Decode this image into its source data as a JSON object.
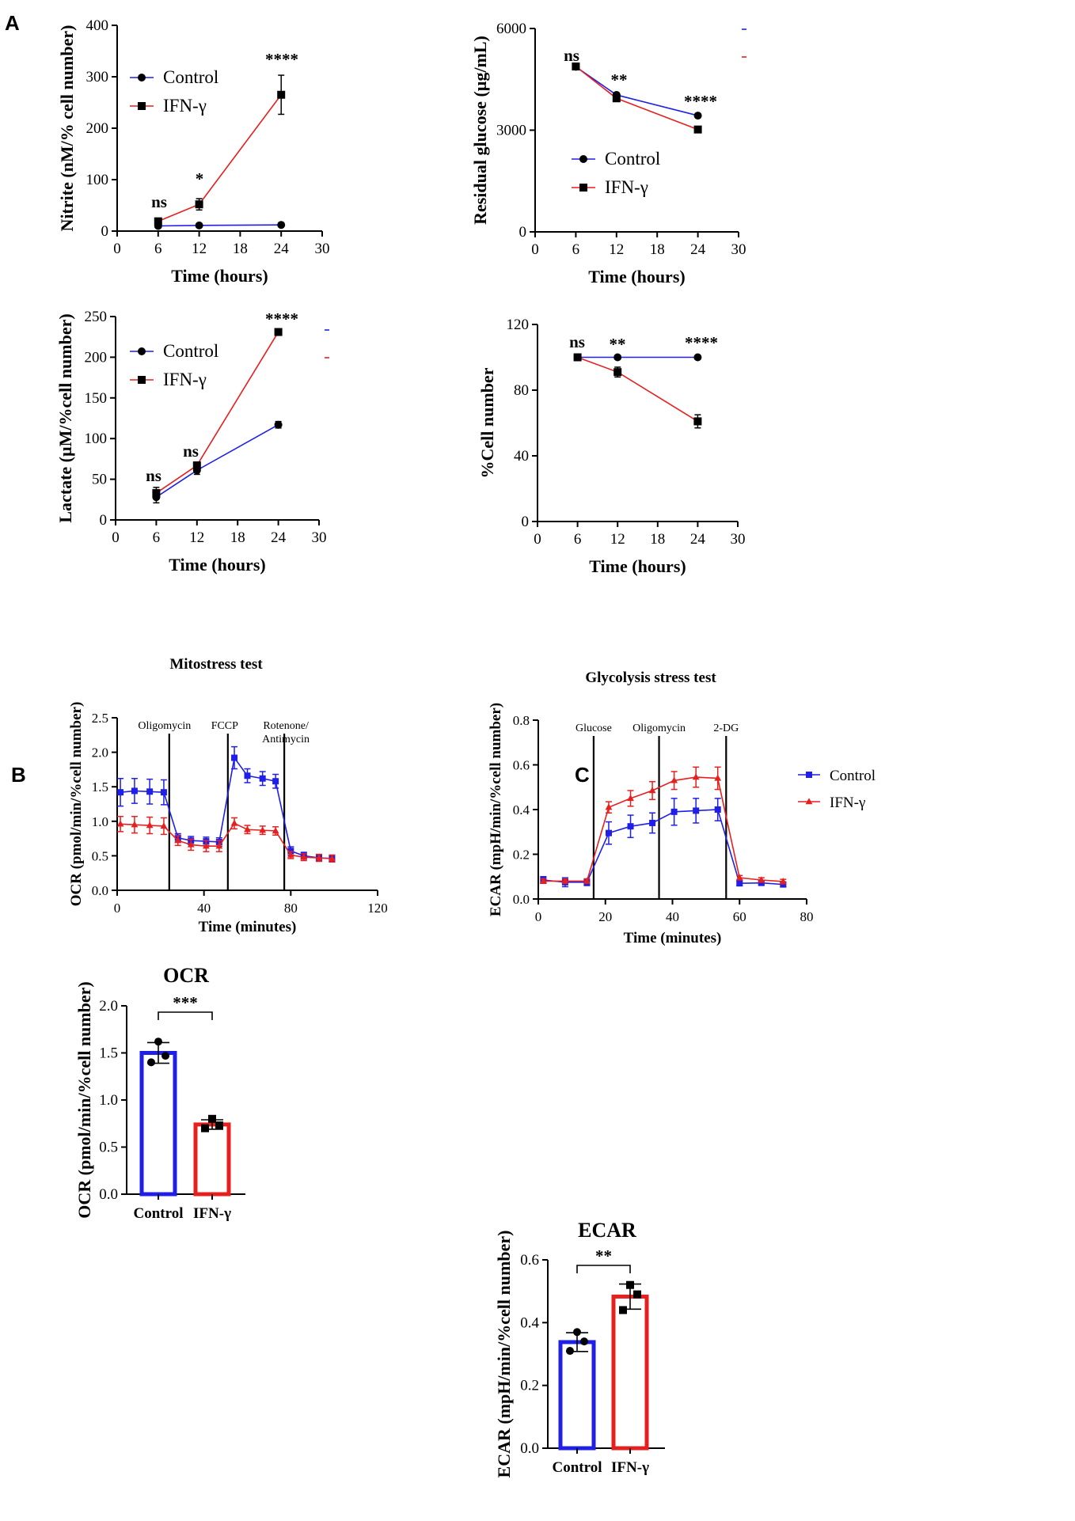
{
  "panel_labels": {
    "a": "A",
    "b": "B",
    "c": "C"
  },
  "colors": {
    "control": "#1f1fe6",
    "ifn": "#e61f1f",
    "axis": "#000000"
  },
  "chart_data": [
    {
      "id": "nitrite",
      "type": "line",
      "xlabel": "Time (hours)",
      "ylabel": "Nitrite (nM/% cell number)",
      "xlim": [
        0,
        30
      ],
      "ylim": [
        0,
        400
      ],
      "xticks": [
        "0",
        "6",
        "12",
        "18",
        "24",
        "30"
      ],
      "yticks": [
        "0",
        "100",
        "200",
        "300",
        "400"
      ],
      "x": [
        6,
        12,
        24
      ],
      "series": [
        {
          "name": "Control",
          "marker": "circle",
          "values": [
            10,
            11,
            12
          ],
          "err": [
            2,
            2,
            2
          ]
        },
        {
          "name": "IFN-γ",
          "marker": "square",
          "values": [
            19,
            52,
            265
          ],
          "err": [
            4,
            11,
            38
          ]
        }
      ],
      "significance": [
        "ns",
        "*",
        "****"
      ],
      "legend_position": "top-left"
    },
    {
      "id": "glucose",
      "type": "line",
      "xlabel": "Time (hours)",
      "ylabel": "Residual glucose (µg/mL)",
      "xlim": [
        0,
        30
      ],
      "ylim": [
        0,
        6000
      ],
      "xticks": [
        "0",
        "6",
        "12",
        "18",
        "24",
        "30"
      ],
      "yticks": [
        "0",
        "3000",
        "6000"
      ],
      "x": [
        6,
        12,
        24
      ],
      "series": [
        {
          "name": "Control",
          "marker": "circle",
          "values": [
            4870,
            4040,
            3430
          ],
          "err": [
            40,
            50,
            40
          ]
        },
        {
          "name": "IFN-γ",
          "marker": "square",
          "values": [
            4880,
            3940,
            3020
          ],
          "err": [
            40,
            50,
            40
          ]
        }
      ],
      "significance": [
        "ns",
        "**",
        "****"
      ],
      "legend_position": "center"
    },
    {
      "id": "lactate",
      "type": "line",
      "xlabel": "Time (hours)",
      "ylabel": "Lactate (µM/%cell number)",
      "xlim": [
        0,
        30
      ],
      "ylim": [
        0,
        250
      ],
      "xticks": [
        "0",
        "6",
        "12",
        "18",
        "24",
        "30"
      ],
      "yticks": [
        "0",
        "50",
        "100",
        "150",
        "200",
        "250"
      ],
      "x": [
        6,
        12,
        24
      ],
      "series": [
        {
          "name": "Control",
          "marker": "circle",
          "values": [
            28,
            61,
            117
          ],
          "err": [
            7,
            5,
            4
          ]
        },
        {
          "name": "IFN-γ",
          "marker": "square",
          "values": [
            33,
            67,
            231
          ],
          "err": [
            7,
            4,
            2
          ]
        }
      ],
      "significance": [
        "ns",
        "ns",
        "****"
      ],
      "legend_position": "top-left"
    },
    {
      "id": "cellnum",
      "type": "line",
      "xlabel": "Time (hours)",
      "ylabel": "%Cell number",
      "xlim": [
        0,
        30
      ],
      "ylim": [
        0,
        120
      ],
      "xticks": [
        "0",
        "6",
        "12",
        "18",
        "24",
        "30"
      ],
      "yticks": [
        "0",
        "40",
        "80",
        "120"
      ],
      "x": [
        6,
        12,
        24
      ],
      "series": [
        {
          "name": "Control",
          "marker": "circle",
          "values": [
            100,
            100,
            100
          ],
          "err": [
            1,
            1,
            1
          ]
        },
        {
          "name": "IFN-γ",
          "marker": "square",
          "values": [
            100,
            91,
            61
          ],
          "err": [
            1,
            3,
            4
          ]
        }
      ],
      "significance": [
        "ns",
        "**",
        "****"
      ],
      "legend_position": "none"
    },
    {
      "id": "ocr_time",
      "type": "line",
      "title": "Mitostress test",
      "xlabel": "Time (minutes)",
      "ylabel": "OCR (pmol/min/%cell number)",
      "xlim": [
        0,
        120
      ],
      "ylim": [
        0,
        2.5
      ],
      "xticks": [
        "0",
        "40",
        "80",
        "120"
      ],
      "yticks": [
        "0.0",
        "0.5",
        "1.0",
        "1.5",
        "2.0",
        "2.5"
      ],
      "x": [
        1.5,
        8,
        15,
        21.5,
        28,
        34,
        41,
        47,
        54,
        60,
        67,
        73,
        80,
        86,
        93,
        99
      ],
      "series": [
        {
          "name": "Control",
          "marker": "square",
          "values": [
            1.42,
            1.44,
            1.43,
            1.42,
            0.76,
            0.72,
            0.71,
            0.7,
            1.92,
            1.66,
            1.62,
            1.58,
            0.57,
            0.5,
            0.47,
            0.46
          ],
          "err": [
            0.2,
            0.18,
            0.18,
            0.18,
            0.06,
            0.06,
            0.06,
            0.06,
            0.16,
            0.1,
            0.1,
            0.1,
            0.06,
            0.05,
            0.05,
            0.05
          ]
        },
        {
          "name": "IFN-γ",
          "marker": "triangle",
          "values": [
            0.96,
            0.95,
            0.94,
            0.93,
            0.72,
            0.66,
            0.64,
            0.64,
            0.97,
            0.88,
            0.87,
            0.86,
            0.51,
            0.48,
            0.47,
            0.46
          ],
          "err": [
            0.11,
            0.12,
            0.12,
            0.12,
            0.07,
            0.08,
            0.08,
            0.08,
            0.08,
            0.06,
            0.06,
            0.06,
            0.05,
            0.05,
            0.05,
            0.05
          ]
        }
      ],
      "injections": [
        {
          "label": "Oligomycin",
          "x": 24
        },
        {
          "label": "FCCP",
          "x": 51
        },
        {
          "label": "Rotenone/",
          "label2": "Antimycin",
          "x": 77
        }
      ]
    },
    {
      "id": "ecar_time",
      "type": "line",
      "title": "Glycolysis stress test",
      "xlabel": "Time (minutes)",
      "ylabel": "ECAR (mpH/min/%cell number)",
      "xlim": [
        0,
        80
      ],
      "ylim": [
        0,
        0.8
      ],
      "xticks": [
        "0",
        "20",
        "40",
        "60",
        "80"
      ],
      "yticks": [
        "0.0",
        "0.2",
        "0.4",
        "0.6",
        "0.8"
      ],
      "x": [
        1.5,
        8,
        14.5,
        21,
        27.5,
        34,
        40.5,
        47,
        53.5,
        60,
        66.5,
        73
      ],
      "series": [
        {
          "name": "Control",
          "marker": "square",
          "values": [
            0.085,
            0.075,
            0.075,
            0.295,
            0.325,
            0.34,
            0.39,
            0.395,
            0.4,
            0.07,
            0.072,
            0.065
          ],
          "err": [
            0.015,
            0.02,
            0.015,
            0.05,
            0.05,
            0.045,
            0.06,
            0.055,
            0.05,
            0.01,
            0.01,
            0.01
          ]
        },
        {
          "name": "IFN-γ",
          "marker": "triangle",
          "values": [
            0.08,
            0.08,
            0.08,
            0.41,
            0.45,
            0.485,
            0.53,
            0.545,
            0.54,
            0.095,
            0.085,
            0.078
          ],
          "err": [
            0.01,
            0.01,
            0.01,
            0.025,
            0.035,
            0.04,
            0.04,
            0.045,
            0.05,
            0.01,
            0.01,
            0.01
          ]
        }
      ],
      "injections": [
        {
          "label": "Glucose",
          "x": 16.5
        },
        {
          "label": "Oligomycin",
          "x": 36
        },
        {
          "label": "2-DG",
          "x": 56
        }
      ],
      "legend_position": "right"
    },
    {
      "id": "ocr_bar",
      "type": "bar",
      "title": "OCR",
      "ylabel": "OCR (pmol/min/%cell number)",
      "categories": [
        "Control",
        "IFN-γ"
      ],
      "values": [
        1.5,
        0.74
      ],
      "err": [
        0.11,
        0.05
      ],
      "points": [
        [
          1.62,
          1.47,
          1.4
        ],
        [
          0.8,
          0.73,
          0.7
        ]
      ],
      "ylim": [
        0,
        2.0
      ],
      "yticks": [
        "0.0",
        "0.5",
        "1.0",
        "1.5",
        "2.0"
      ],
      "significance": "***"
    },
    {
      "id": "ecar_bar",
      "type": "bar",
      "title": "ECAR",
      "ylabel": "ECAR (mpH/min/%cell number)",
      "categories": [
        "Control",
        "IFN-γ"
      ],
      "values": [
        0.338,
        0.483
      ],
      "err": [
        0.03,
        0.04
      ],
      "points": [
        [
          0.37,
          0.34,
          0.31
        ],
        [
          0.52,
          0.49,
          0.44
        ]
      ],
      "ylim": [
        0,
        0.6
      ],
      "yticks": [
        "0.0",
        "0.2",
        "0.4",
        "0.6"
      ],
      "significance": "**"
    }
  ]
}
